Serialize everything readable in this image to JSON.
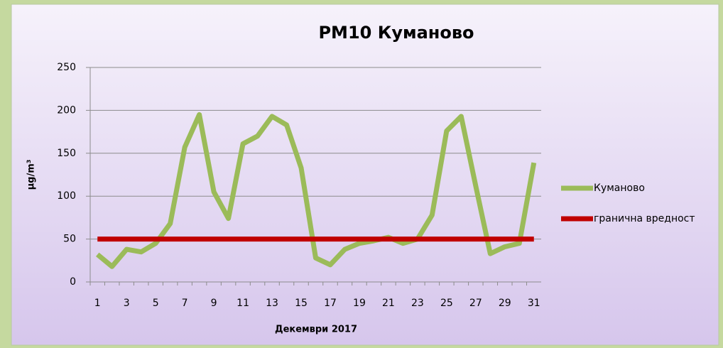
{
  "chart_data": {
    "type": "line",
    "title": "PM10 Куманово",
    "y_label": "µg/m³",
    "x_label": "Декември 2017",
    "categories": [
      1,
      null,
      3,
      null,
      5,
      null,
      7,
      null,
      9,
      null,
      11,
      null,
      13,
      null,
      15,
      null,
      17,
      null,
      19,
      null,
      21,
      null,
      23,
      null,
      25,
      null,
      27,
      null,
      29,
      null,
      31
    ],
    "series": [
      {
        "name": "Куманово",
        "color": "#9bbb59",
        "values": [
          32,
          18,
          38,
          35,
          45,
          68,
          157,
          195,
          105,
          74,
          161,
          170,
          193,
          183,
          133,
          28,
          20,
          38,
          45,
          48,
          52,
          45,
          50,
          78,
          176,
          193,
          112,
          33,
          41,
          45,
          139
        ]
      },
      {
        "name": "гранична вредност",
        "color": "#c00000",
        "values": [
          50,
          50,
          50,
          50,
          50,
          50,
          50,
          50,
          50,
          50,
          50,
          50,
          50,
          50,
          50,
          50,
          50,
          50,
          50,
          50,
          50,
          50,
          50,
          50,
          50,
          50,
          50,
          50,
          50,
          50,
          50
        ]
      }
    ],
    "ylim": [
      0,
      250
    ],
    "yticks": [
      0,
      50,
      100,
      150,
      200,
      250
    ],
    "grid": true,
    "legend": "right"
  }
}
